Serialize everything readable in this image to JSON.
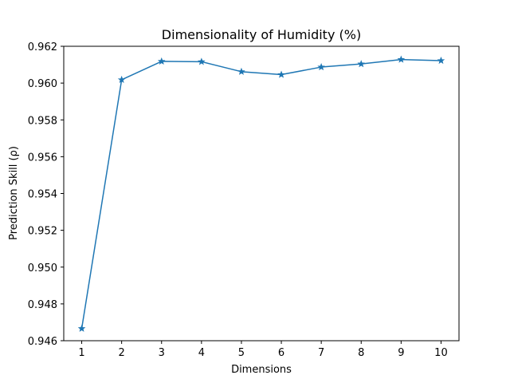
{
  "chart_data": {
    "type": "line",
    "title": "Dimensionality of Humidity (%)",
    "xlabel": "Dimensions",
    "ylabel": "Prediction Skill (ρ)",
    "x": [
      1,
      2,
      3,
      4,
      5,
      6,
      7,
      8,
      9,
      10
    ],
    "series": [
      {
        "values": [
          0.94666,
          0.96018,
          0.96118,
          0.96116,
          0.96062,
          0.96046,
          0.96087,
          0.96104,
          0.96128,
          0.96122
        ],
        "color": "#1f77b4",
        "marker": "star"
      }
    ],
    "xticks": [
      1,
      2,
      3,
      4,
      5,
      6,
      7,
      8,
      9,
      10
    ],
    "yticks": [
      "0.946",
      "0.948",
      "0.950",
      "0.952",
      "0.954",
      "0.956",
      "0.958",
      "0.960",
      "0.962"
    ],
    "ylim": [
      0.946,
      0.962
    ],
    "xlim": [
      0.55,
      10.45
    ],
    "grid": false
  }
}
